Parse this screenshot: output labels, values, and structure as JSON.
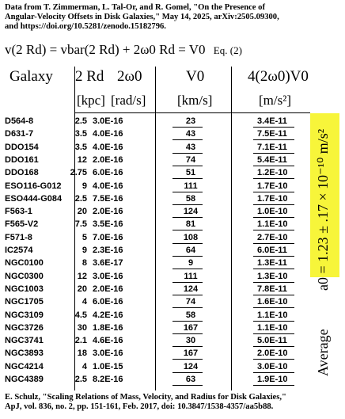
{
  "header": {
    "line1": "Data from T. Zimmerman, L. Tal-Or, and R. Gomel, \"On the Presence of",
    "line2": "Angular-Velocity Offsets in Disk Galaxies,\" May 14, 2025, arXiv:2505.09300,",
    "line3": "and https://doi.org/10.5281/zenodo.15182796."
  },
  "equation": {
    "text": "v(2 Rd) = vbar(2 Rd) + 2ω0 Rd = V0",
    "label": "Eq. (2)"
  },
  "columns": {
    "galaxy": "Galaxy",
    "r": "2 Rd",
    "w": "2ω0",
    "v": "V0",
    "a": "4(2ω0)V0"
  },
  "units": {
    "r": "[kpc]",
    "w": "[rad/s]",
    "v": "[km/s]",
    "a": "[m/s²]"
  },
  "rows": [
    {
      "galaxy": "D564-8",
      "r": "2.5",
      "w": "3.0E-16",
      "v": "23",
      "a": "3.4E-11"
    },
    {
      "galaxy": "D631-7",
      "r": "3.5",
      "w": "4.0E-16",
      "v": "43",
      "a": "7.5E-11"
    },
    {
      "galaxy": "DDO154",
      "r": "3.5",
      "w": "4.0E-16",
      "v": "43",
      "a": "7.1E-11"
    },
    {
      "galaxy": "DDO161",
      "r": "12",
      "w": "2.0E-16",
      "v": "74",
      "a": "5.4E-11"
    },
    {
      "galaxy": "DDO168",
      "r": "2.75",
      "w": "6.0E-16",
      "v": "51",
      "a": "1.2E-10"
    },
    {
      "galaxy": "ESO116-G012",
      "r": "9",
      "w": "4.0E-16",
      "v": "111",
      "a": "1.7E-10"
    },
    {
      "galaxy": "ESO444-G084",
      "r": "2.5",
      "w": "7.5E-16",
      "v": "58",
      "a": "1.7E-10"
    },
    {
      "galaxy": "F563-1",
      "r": "20",
      "w": "2.0E-16",
      "v": "124",
      "a": "1.0E-10"
    },
    {
      "galaxy": "F565-V2",
      "r": "7.5",
      "w": "3.5E-16",
      "v": "81",
      "a": "1.1E-10"
    },
    {
      "galaxy": "F571-8",
      "r": "5",
      "w": "7.0E-16",
      "v": "108",
      "a": "2.7E-10"
    },
    {
      "galaxy": "IC2574",
      "r": "9",
      "w": "2.3E-16",
      "v": "64",
      "a": "6.0E-11"
    },
    {
      "galaxy": "NGC0100",
      "r": "8",
      "w": "3.6E-17",
      "v": "9",
      "a": "1.3E-11"
    },
    {
      "galaxy": "NGC0300",
      "r": "12",
      "w": "3.0E-16",
      "v": "111",
      "a": "1.3E-10"
    },
    {
      "galaxy": "NGC1003",
      "r": "20",
      "w": "2.0E-16",
      "v": "124",
      "a": "7.8E-11"
    },
    {
      "galaxy": "NGC1705",
      "r": "4",
      "w": "6.0E-16",
      "v": "74",
      "a": "1.6E-10"
    },
    {
      "galaxy": "NGC3109",
      "r": "4.5",
      "w": "4.2E-16",
      "v": "58",
      "a": "1.1E-10"
    },
    {
      "galaxy": "NGC3726",
      "r": "30",
      "w": "1.8E-16",
      "v": "167",
      "a": "1.1E-10"
    },
    {
      "galaxy": "NGC3741",
      "r": "2.1",
      "w": "4.6E-16",
      "v": "30",
      "a": "5.0E-11"
    },
    {
      "galaxy": "NGC3893",
      "r": "18",
      "w": "3.0E-16",
      "v": "167",
      "a": "2.0E-10"
    },
    {
      "galaxy": "NGC4214",
      "r": "4",
      "w": "1.0E-15",
      "v": "124",
      "a": "3.0E-10"
    },
    {
      "galaxy": "NGC4389",
      "r": "2.5",
      "w": "8.2E-16",
      "v": "63",
      "a": "1.9E-10"
    }
  ],
  "sidebar": {
    "average": "Average",
    "formula": "a0 = 1.23 ± .17 × 10⁻¹⁰ m/s²",
    "highlight_color": "#f7f53a"
  },
  "footer": {
    "line1": "E. Schulz, \"Scaling Relations of Mass, Velocity, and Radius for Disk Galaxies,\"",
    "line2": "ApJ, vol. 836, no. 2, pp. 151-161, Feb. 2017, doi: 10.3847/1538-4357/aa5b88."
  }
}
